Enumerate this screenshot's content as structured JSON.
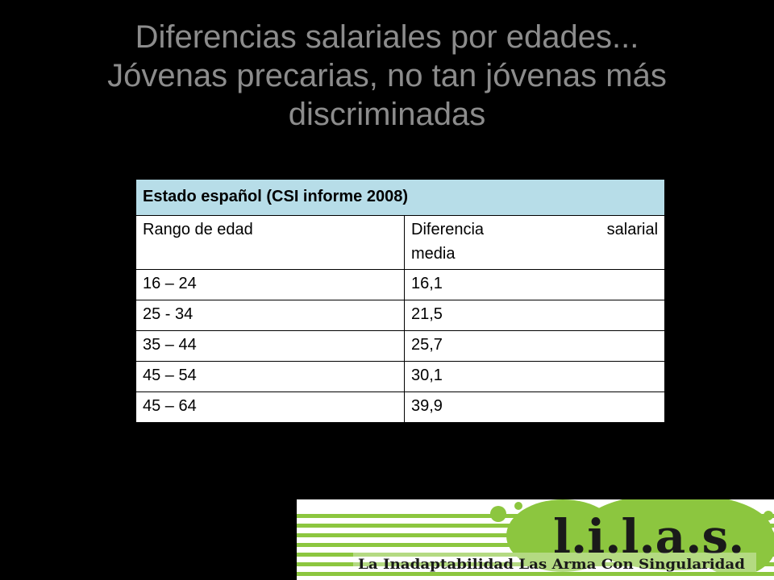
{
  "title": {
    "line1": "Diferencias salariales por edades...",
    "line2": "Jóvenas precarias, no tan jóvenas más",
    "line3": "discriminadas"
  },
  "table": {
    "header": "Estado español (CSI informe 2008)",
    "col1": "Rango de edad",
    "col2_word1": "Diferencia",
    "col2_word2": "salarial",
    "col2_word3": "media",
    "rows": [
      {
        "range": "16 – 24",
        "value": "16,1"
      },
      {
        "range": "25 - 34",
        "value": "21,5"
      },
      {
        "range": "35 – 44",
        "value": "25,7"
      },
      {
        "range": "45 – 54",
        "value": "30,1"
      },
      {
        "range": "45 – 64",
        "value": "39,9"
      }
    ]
  },
  "logo": {
    "brand": "l.i.l.a.s.",
    "tagline": "La Inadaptabilidad Las Arma Con Singularidad",
    "colors": {
      "green": "#8cc63f",
      "dark": "#1a1a1a"
    }
  }
}
